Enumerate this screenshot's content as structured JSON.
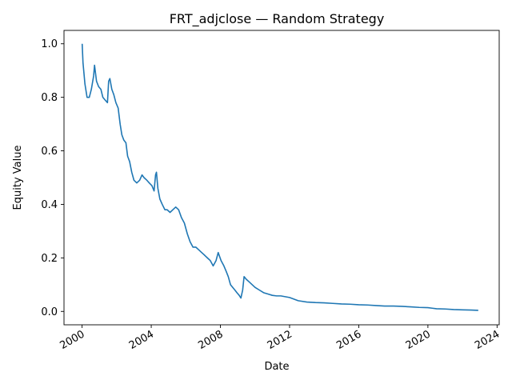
{
  "chart_data": {
    "type": "line",
    "title": "FRT_adjclose — Random Strategy",
    "xlabel": "Date",
    "ylabel": "Equity Value",
    "x_tick_labels": [
      "2000",
      "2004",
      "2008",
      "2012",
      "2016",
      "2020",
      "2024"
    ],
    "y_tick_labels": [
      "0.0",
      "0.2",
      "0.4",
      "0.6",
      "0.8",
      "1.0"
    ],
    "xlim": [
      "1998-12-15",
      "2024-02-15"
    ],
    "ylim": [
      -0.05,
      1.05
    ],
    "grid": false,
    "legend": false,
    "colors": {
      "series": "#1f77b4",
      "axes": "#000000",
      "background": "#ffffff"
    },
    "series": [
      {
        "x": [
          "2000-01-03",
          "2000-01-20",
          "2000-03-01",
          "2000-04-15",
          "2000-06-01",
          "2000-07-15",
          "2000-09-01",
          "2000-09-20",
          "2000-11-01",
          "2000-12-15",
          "2001-02-01",
          "2001-03-15",
          "2001-05-01",
          "2001-06-20",
          "2001-07-15",
          "2001-08-10",
          "2001-09-20",
          "2001-11-01",
          "2001-12-15",
          "2002-02-01",
          "2002-03-15",
          "2002-04-20",
          "2002-06-01",
          "2002-07-15",
          "2002-08-20",
          "2002-10-01",
          "2002-11-15",
          "2003-01-01",
          "2003-03-01",
          "2003-05-01",
          "2003-06-20",
          "2003-08-01",
          "2003-10-01",
          "2003-11-20",
          "2004-01-15",
          "2004-03-01",
          "2004-04-01",
          "2004-04-20",
          "2004-05-20",
          "2004-07-01",
          "2004-08-20",
          "2004-10-15",
          "2004-12-01",
          "2005-02-01",
          "2005-04-01",
          "2005-06-01",
          "2005-08-01",
          "2005-10-01",
          "2005-12-01",
          "2006-02-01",
          "2006-04-01",
          "2006-06-01",
          "2006-08-01",
          "2006-10-01",
          "2006-12-01",
          "2007-02-01",
          "2007-04-01",
          "2007-06-01",
          "2007-08-01",
          "2007-10-01",
          "2007-11-15",
          "2008-01-15",
          "2008-03-15",
          "2008-05-01",
          "2008-06-15",
          "2008-08-01",
          "2008-09-15",
          "2008-11-01",
          "2008-12-15",
          "2009-02-01",
          "2009-03-09",
          "2009-04-15",
          "2009-05-15",
          "2009-07-01",
          "2009-09-01",
          "2009-11-01",
          "2010-01-01",
          "2010-04-01",
          "2010-07-01",
          "2010-10-01",
          "2011-01-01",
          "2011-04-01",
          "2011-07-01",
          "2011-10-01",
          "2012-01-01",
          "2012-07-01",
          "2013-01-01",
          "2013-07-01",
          "2014-01-01",
          "2014-07-01",
          "2015-01-01",
          "2015-07-01",
          "2016-01-01",
          "2016-07-01",
          "2017-01-01",
          "2017-07-01",
          "2018-01-01",
          "2018-07-01",
          "2019-01-01",
          "2019-07-01",
          "2020-01-01",
          "2020-04-01",
          "2020-07-01",
          "2021-01-01",
          "2021-07-01",
          "2022-01-01",
          "2022-07-01",
          "2022-11-30"
        ],
        "values": [
          1.0,
          0.93,
          0.85,
          0.8,
          0.8,
          0.83,
          0.88,
          0.92,
          0.86,
          0.84,
          0.83,
          0.8,
          0.79,
          0.78,
          0.86,
          0.87,
          0.83,
          0.81,
          0.78,
          0.76,
          0.7,
          0.66,
          0.64,
          0.63,
          0.58,
          0.56,
          0.52,
          0.49,
          0.48,
          0.49,
          0.51,
          0.5,
          0.49,
          0.48,
          0.47,
          0.45,
          0.51,
          0.52,
          0.46,
          0.42,
          0.4,
          0.38,
          0.38,
          0.37,
          0.38,
          0.39,
          0.38,
          0.35,
          0.33,
          0.29,
          0.26,
          0.24,
          0.24,
          0.23,
          0.22,
          0.21,
          0.2,
          0.19,
          0.17,
          0.19,
          0.22,
          0.19,
          0.17,
          0.15,
          0.13,
          0.1,
          0.09,
          0.08,
          0.07,
          0.06,
          0.05,
          0.08,
          0.13,
          0.12,
          0.11,
          0.1,
          0.09,
          0.08,
          0.07,
          0.065,
          0.06,
          0.058,
          0.058,
          0.055,
          0.052,
          0.04,
          0.035,
          0.033,
          0.032,
          0.03,
          0.028,
          0.027,
          0.025,
          0.024,
          0.022,
          0.02,
          0.02,
          0.019,
          0.017,
          0.015,
          0.014,
          0.012,
          0.01,
          0.009,
          0.007,
          0.006,
          0.005,
          0.004
        ]
      }
    ]
  }
}
